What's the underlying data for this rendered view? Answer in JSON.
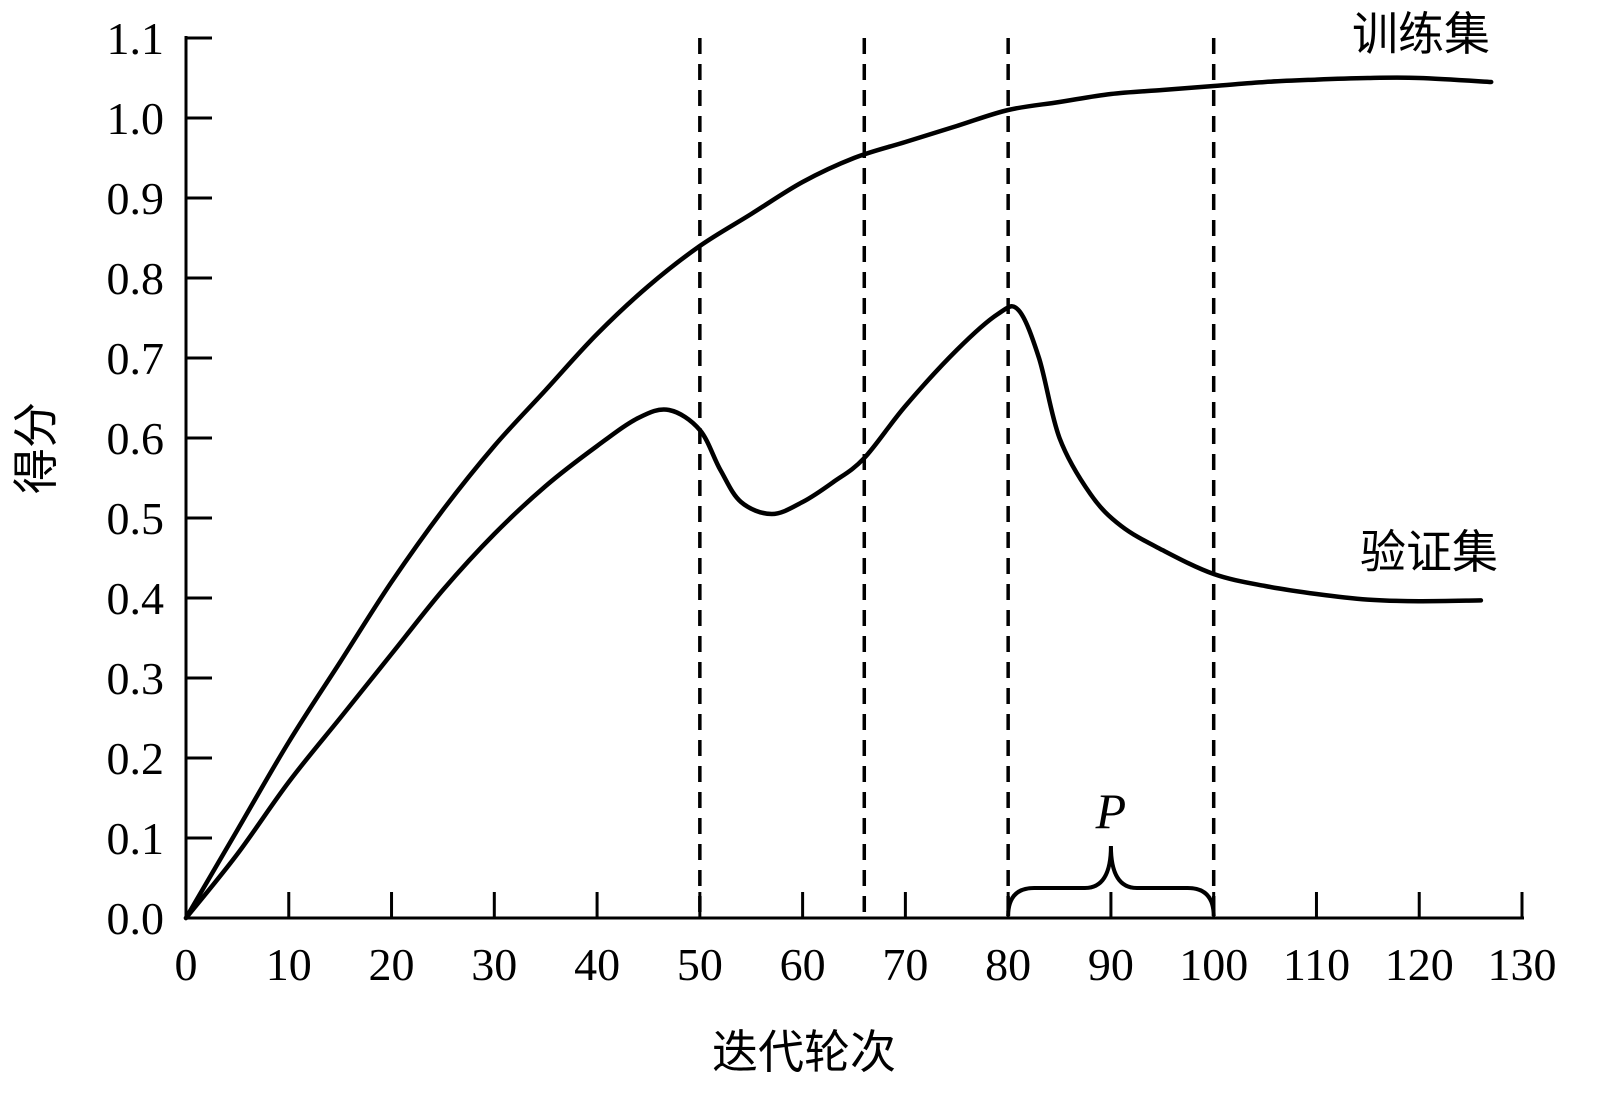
{
  "chart_data": {
    "type": "line",
    "xlabel": "迭代轮次",
    "ylabel": "得分",
    "xlim": [
      0,
      130
    ],
    "ylim": [
      0,
      1.1
    ],
    "x_ticks": [
      0,
      10,
      20,
      30,
      40,
      50,
      60,
      70,
      80,
      90,
      100,
      110,
      120,
      130
    ],
    "y_ticks": [
      "0.0",
      "0.1",
      "0.2",
      "0.3",
      "0.4",
      "0.5",
      "0.6",
      "0.7",
      "0.8",
      "0.9",
      "1.0",
      "1.1"
    ],
    "grid": false,
    "vertical_dashed_lines": [
      50,
      66,
      80,
      100
    ],
    "bracket": {
      "label": "P",
      "x_start": 80,
      "x_end": 100
    },
    "series": [
      {
        "name": "训练集",
        "x": [
          0,
          5,
          10,
          15,
          20,
          25,
          30,
          35,
          40,
          45,
          50,
          55,
          60,
          65,
          70,
          75,
          80,
          85,
          90,
          95,
          100,
          105,
          110,
          115,
          120,
          127
        ],
        "y": [
          0.0,
          0.11,
          0.22,
          0.32,
          0.42,
          0.51,
          0.59,
          0.66,
          0.73,
          0.79,
          0.84,
          0.88,
          0.92,
          0.95,
          0.97,
          0.99,
          1.01,
          1.02,
          1.03,
          1.035,
          1.04,
          1.045,
          1.048,
          1.05,
          1.05,
          1.045
        ]
      },
      {
        "name": "验证集",
        "x": [
          0,
          5,
          10,
          15,
          20,
          25,
          30,
          35,
          40,
          44,
          47,
          50,
          52,
          54,
          57,
          60,
          63,
          66,
          70,
          75,
          79,
          81,
          83,
          85,
          88,
          91,
          95,
          100,
          105,
          110,
          115,
          120,
          126
        ],
        "y": [
          0.0,
          0.08,
          0.17,
          0.25,
          0.33,
          0.41,
          0.48,
          0.54,
          0.59,
          0.625,
          0.635,
          0.61,
          0.56,
          0.52,
          0.505,
          0.52,
          0.545,
          0.575,
          0.64,
          0.71,
          0.755,
          0.76,
          0.7,
          0.6,
          0.53,
          0.49,
          0.46,
          0.43,
          0.415,
          0.405,
          0.398,
          0.396,
          0.397
        ]
      }
    ]
  }
}
